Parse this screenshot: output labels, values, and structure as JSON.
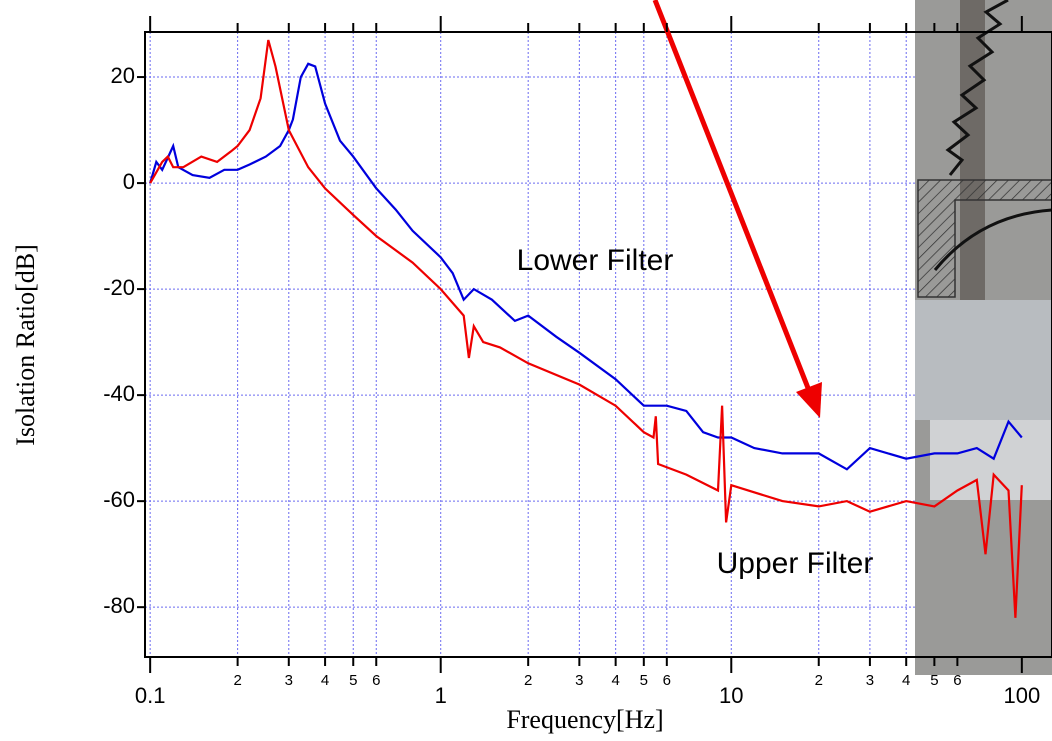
{
  "chart_data": {
    "type": "line",
    "x_label": "Frequency[Hz]",
    "y_label": "Isolation Ratio[dB]",
    "log_x": true,
    "grid": true,
    "xlim": [
      0.096,
      127
    ],
    "ylim": [
      -89.4,
      28.5
    ],
    "xticks": [
      0.1,
      {
        "value": 0.2,
        "label": "2"
      },
      {
        "value": 0.3,
        "label": "3"
      },
      {
        "value": 0.4,
        "label": "4"
      },
      {
        "value": 0.5,
        "label": "5"
      },
      {
        "value": 0.6,
        "label": "6"
      },
      1,
      {
        "value": 2,
        "label": "2"
      },
      {
        "value": 3,
        "label": "3"
      },
      {
        "value": 4,
        "label": "4"
      },
      {
        "value": 5,
        "label": "5"
      },
      {
        "value": 6,
        "label": "6"
      },
      10,
      {
        "value": 20,
        "label": "2"
      },
      {
        "value": 30,
        "label": "3"
      },
      {
        "value": 40,
        "label": "4"
      },
      {
        "value": 50,
        "label": "5"
      },
      {
        "value": 60,
        "label": "6"
      },
      100
    ],
    "yticks": [
      20,
      0,
      -20,
      -40,
      -60,
      -80
    ],
    "series": [
      {
        "name": "Lower Filter",
        "color": "#0000dd",
        "x": [
          0.1,
          0.105,
          0.11,
          0.12,
          0.125,
          0.14,
          0.16,
          0.18,
          0.2,
          0.22,
          0.25,
          0.28,
          0.3,
          0.31,
          0.33,
          0.35,
          0.37,
          0.4,
          0.45,
          0.5,
          0.6,
          0.7,
          0.8,
          1.0,
          1.1,
          1.2,
          1.3,
          1.5,
          1.8,
          2,
          2.5,
          3,
          4,
          5,
          6,
          7,
          8,
          9,
          10,
          12,
          15,
          20,
          25,
          30,
          40,
          50,
          60,
          70,
          80,
          90,
          100
        ],
        "values": [
          0,
          4,
          2.5,
          7,
          3,
          1.5,
          1,
          2.5,
          2.5,
          3.5,
          5,
          7,
          10,
          12,
          20,
          22.5,
          22,
          15,
          8,
          5,
          -1,
          -5,
          -9,
          -14,
          -17,
          -22,
          -20,
          -22,
          -26,
          -25,
          -29,
          -32,
          -37,
          -42,
          -42,
          -43,
          -47,
          -48,
          -48,
          -50,
          -51,
          -51,
          -54,
          -50,
          -52,
          -51,
          -51,
          -50,
          -52,
          -45,
          -48
        ]
      },
      {
        "name": "Upper Filter",
        "color": "#ee0000",
        "x": [
          0.1,
          0.11,
          0.115,
          0.12,
          0.13,
          0.15,
          0.17,
          0.19,
          0.2,
          0.22,
          0.24,
          0.255,
          0.27,
          0.3,
          0.35,
          0.4,
          0.5,
          0.6,
          0.8,
          1.0,
          1.2,
          1.25,
          1.3,
          1.4,
          1.6,
          2,
          3,
          4,
          5,
          5.4,
          5.5,
          5.6,
          7,
          9,
          9.3,
          9.6,
          10,
          15,
          20,
          25,
          30,
          40,
          50,
          60,
          70,
          75,
          80,
          90,
          95,
          100
        ],
        "values": [
          0,
          4,
          5,
          3,
          3,
          5,
          4,
          6,
          7,
          10,
          16,
          27,
          22,
          10,
          3,
          -1,
          -6,
          -10,
          -15,
          -20,
          -25,
          -33,
          -27,
          -30,
          -31,
          -34,
          -38,
          -42,
          -47,
          -48,
          -44,
          -53,
          -55,
          -58,
          -42,
          -64,
          -57,
          -60,
          -61,
          -60,
          -62,
          -60,
          -61,
          -58,
          -56,
          -70,
          -55,
          -58,
          -82,
          -57
        ]
      }
    ]
  }
}
